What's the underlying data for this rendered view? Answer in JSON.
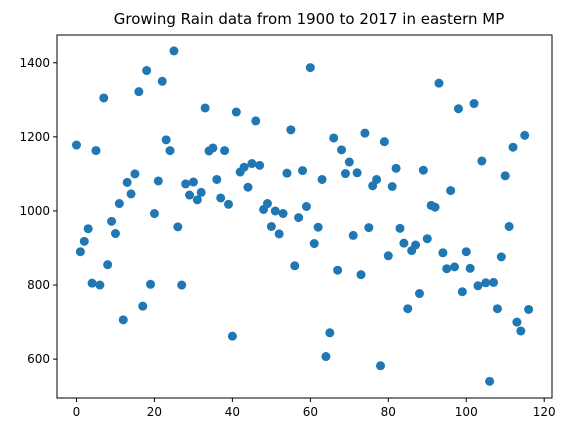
{
  "chart_data": {
    "type": "scatter",
    "title": "Growing Rain data from 1900 to 2017 in eastern MP",
    "xlabel": "",
    "ylabel": "",
    "xlim": [
      -5,
      122
    ],
    "ylim": [
      495,
      1475
    ],
    "xticks": [
      0,
      20,
      40,
      60,
      80,
      100,
      120
    ],
    "yticks": [
      600,
      800,
      1000,
      1200,
      1400
    ],
    "grid": false,
    "legend": "none",
    "marker_color": "#1f77b4",
    "series": [
      {
        "x": [
          0,
          1,
          2,
          3,
          4,
          5,
          6,
          7,
          8,
          9,
          10,
          11,
          12,
          13,
          14,
          15,
          16,
          17,
          18,
          19,
          20,
          21,
          22,
          23,
          24,
          25,
          26,
          27,
          28,
          29,
          30,
          31,
          32,
          33,
          34,
          35,
          36,
          37,
          38,
          39,
          40,
          41,
          42,
          43,
          44,
          45,
          46,
          47,
          48,
          49,
          50,
          51,
          52,
          53,
          54,
          55,
          56,
          57,
          58,
          59,
          60,
          61,
          62,
          63,
          64,
          65,
          66,
          67,
          68,
          69,
          70,
          71,
          72,
          73,
          74,
          75,
          76,
          77,
          78,
          79,
          80,
          81,
          82,
          83,
          84,
          85,
          86,
          87,
          88,
          89,
          90,
          91,
          92,
          93,
          94,
          95,
          96,
          97,
          98,
          99,
          100,
          101,
          102,
          103,
          104,
          105,
          106,
          107,
          108,
          109,
          110,
          111,
          112,
          113,
          114,
          115,
          116
        ],
        "y": [
          1178,
          890,
          918,
          952,
          805,
          1163,
          800,
          1305,
          855,
          972,
          939,
          1020,
          706,
          1077,
          1046,
          1100,
          1322,
          743,
          1379,
          802,
          993,
          1081,
          1350,
          1192,
          1163,
          1432,
          957,
          800,
          1073,
          1043,
          1078,
          1030,
          1050,
          1278,
          1162,
          1170,
          1085,
          1035,
          1163,
          1018,
          662,
          1267,
          1105,
          1118,
          1064,
          1128,
          1243,
          1123,
          1004,
          1020,
          958,
          1000,
          938,
          993,
          1102,
          1219,
          852,
          982,
          1109,
          1012,
          1387,
          912,
          956,
          1085,
          607,
          671,
          1197,
          840,
          1165,
          1101,
          1132,
          934,
          1103,
          828,
          1210,
          955,
          1068,
          1085,
          582,
          1187,
          879,
          1066,
          1115,
          953,
          913,
          736,
          893,
          908,
          777,
          1110,
          925,
          1015,
          1010,
          1345,
          887,
          844,
          1055,
          849,
          1276,
          782,
          890,
          845,
          1290,
          798,
          1135,
          806,
          540,
          807,
          736,
          876,
          1095,
          958,
          1172,
          700,
          676,
          1204,
          734
        ]
      }
    ]
  }
}
